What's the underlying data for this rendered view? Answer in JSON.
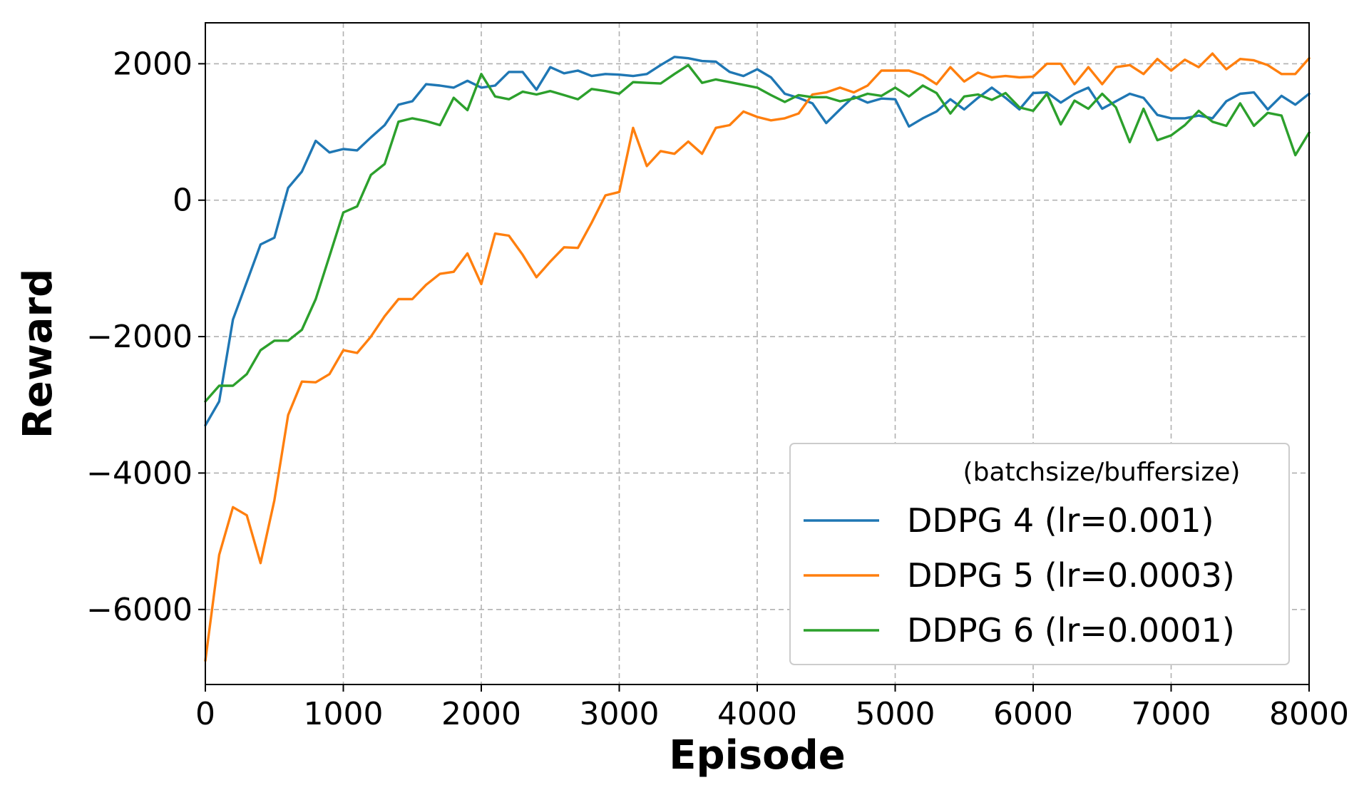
{
  "chart_data": {
    "type": "line",
    "title": "",
    "xlabel": "Episode",
    "ylabel": "Reward",
    "xlim": [
      0,
      8000
    ],
    "ylim": [
      -7100,
      2600
    ],
    "xticks": [
      0,
      1000,
      2000,
      3000,
      4000,
      5000,
      6000,
      7000,
      8000
    ],
    "yticks": [
      2000,
      0,
      -2000,
      -4000,
      -6000
    ],
    "xtick_labels": [
      "0",
      "1000",
      "2000",
      "3000",
      "4000",
      "5000",
      "6000",
      "7000",
      "8000"
    ],
    "ytick_labels": [
      "2000",
      "0",
      "−2000",
      "−4000",
      "−6000"
    ],
    "grid": true,
    "legend": {
      "title": "(batchsize/buffersize)",
      "location": "lower-right"
    },
    "x": [
      0,
      100,
      200,
      300,
      400,
      500,
      600,
      700,
      800,
      900,
      1000,
      1100,
      1200,
      1300,
      1400,
      1500,
      1600,
      1700,
      1800,
      1900,
      2000,
      2100,
      2200,
      2300,
      2400,
      2500,
      2600,
      2700,
      2800,
      2900,
      3000,
      3100,
      3200,
      3300,
      3400,
      3500,
      3600,
      3700,
      3800,
      3900,
      4000,
      4100,
      4200,
      4300,
      4400,
      4500,
      4600,
      4700,
      4800,
      4900,
      5000,
      5100,
      5200,
      5300,
      5400,
      5500,
      5600,
      5700,
      5800,
      5900,
      6000,
      6100,
      6200,
      6300,
      6400,
      6500,
      6600,
      6700,
      6800,
      6900,
      7000,
      7100,
      7200,
      7300,
      7400,
      7500,
      7600,
      7700,
      7800,
      7900,
      8000
    ],
    "series": [
      {
        "name": "DDPG 4 (lr=0.001)",
        "color": "#1f77b4",
        "values": [
          -3300,
          -2950,
          -1750,
          -1200,
          -650,
          -550,
          180,
          420,
          870,
          700,
          750,
          730,
          920,
          1100,
          1400,
          1450,
          1700,
          1680,
          1650,
          1750,
          1650,
          1680,
          1880,
          1880,
          1620,
          1950,
          1860,
          1900,
          1820,
          1850,
          1840,
          1820,
          1850,
          1980,
          2100,
          2080,
          2040,
          2030,
          1880,
          1820,
          1920,
          1800,
          1560,
          1500,
          1420,
          1130,
          1330,
          1520,
          1430,
          1490,
          1480,
          1080,
          1200,
          1300,
          1480,
          1330,
          1500,
          1650,
          1500,
          1330,
          1570,
          1580,
          1430,
          1560,
          1650,
          1340,
          1450,
          1560,
          1500,
          1250,
          1200,
          1200,
          1240,
          1200,
          1450,
          1560,
          1580,
          1330,
          1530,
          1400,
          1560
        ]
      },
      {
        "name": "DDPG 5 (lr=0.0003)",
        "color": "#ff7f0e",
        "values": [
          -6750,
          -5200,
          -4500,
          -4620,
          -5320,
          -4400,
          -3150,
          -2660,
          -2670,
          -2550,
          -2200,
          -2240,
          -2000,
          -1700,
          -1450,
          -1450,
          -1240,
          -1080,
          -1050,
          -780,
          -1230,
          -490,
          -520,
          -800,
          -1130,
          -900,
          -690,
          -700,
          -330,
          70,
          120,
          1060,
          500,
          720,
          680,
          860,
          680,
          1060,
          1100,
          1300,
          1220,
          1170,
          1200,
          1270,
          1550,
          1580,
          1650,
          1580,
          1680,
          1900,
          1900,
          1900,
          1830,
          1700,
          1950,
          1740,
          1870,
          1800,
          1820,
          1800,
          1810,
          2000,
          2000,
          1700,
          1950,
          1700,
          1950,
          1980,
          1850,
          2070,
          1900,
          2060,
          1950,
          2150,
          1920,
          2070,
          2050,
          1980,
          1850,
          1850,
          2080
        ]
      },
      {
        "name": "DDPG 6 (lr=0.0001)",
        "color": "#2ca02c",
        "values": [
          -2950,
          -2720,
          -2720,
          -2550,
          -2200,
          -2060,
          -2060,
          -1900,
          -1450,
          -820,
          -180,
          -90,
          370,
          530,
          1150,
          1200,
          1160,
          1100,
          1500,
          1320,
          1850,
          1520,
          1480,
          1590,
          1550,
          1600,
          1540,
          1480,
          1630,
          1600,
          1560,
          1730,
          1720,
          1710,
          1850,
          1980,
          1720,
          1770,
          1730,
          1690,
          1650,
          1540,
          1440,
          1540,
          1510,
          1510,
          1450,
          1490,
          1560,
          1530,
          1650,
          1520,
          1680,
          1570,
          1270,
          1520,
          1550,
          1470,
          1570,
          1360,
          1310,
          1560,
          1110,
          1460,
          1340,
          1560,
          1360,
          850,
          1340,
          880,
          950,
          1100,
          1310,
          1150,
          1090,
          1420,
          1090,
          1280,
          1240,
          660,
          990
        ]
      }
    ]
  }
}
